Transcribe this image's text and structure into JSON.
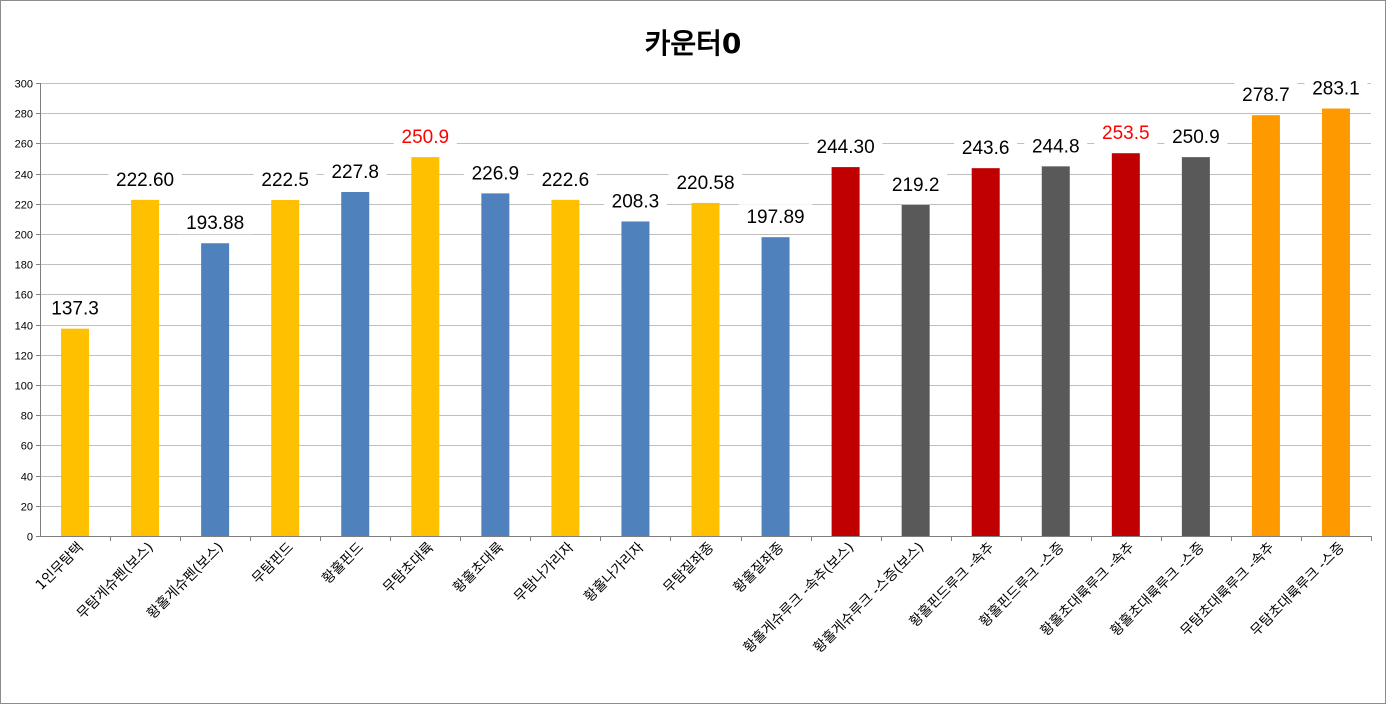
{
  "chart_data": {
    "type": "bar",
    "title": "카운터0",
    "xlabel": "",
    "ylabel": "",
    "ylim": [
      0,
      300
    ],
    "y_ticks": [
      0,
      20,
      40,
      60,
      80,
      100,
      120,
      140,
      160,
      180,
      200,
      220,
      240,
      260,
      280,
      300
    ],
    "grid": true,
    "legend": "none",
    "categories": [
      "1인무탐택",
      "무탐게슈펜(보스)",
      "황홀게슈펜(보스)",
      "무탐핀드",
      "황홀핀드",
      "무탐초대륙",
      "황홀초대륙",
      "무탐나가리자",
      "황홀나가리자",
      "무탐질좌종",
      "황홀질좌종",
      "황홀게슈루크 -속추(보스)",
      "황홀게슈루크 -스증(보스)",
      "황홀핀드루크 -속추",
      "황홀핀드루크 -스증",
      "황홀초대륙루크 -속추",
      "황홀초대륙루크 -스증",
      "무탐초대륙루크 -속추",
      "무탐초대륙루크 -스증"
    ],
    "values": [
      137.3,
      222.6,
      193.88,
      222.5,
      227.8,
      250.9,
      226.9,
      222.6,
      208.3,
      220.58,
      197.89,
      244.3,
      219.2,
      243.6,
      244.8,
      253.5,
      250.9,
      278.7,
      283.1
    ],
    "data_labels": [
      "137.3",
      "222.60",
      "193.88",
      "222.5",
      "227.8",
      "250.9",
      "226.9",
      "222.6",
      "208.3",
      "220.58",
      "197.89",
      "244.30",
      "219.2",
      "243.6",
      "244.8",
      "253.5",
      "250.9",
      "278.7",
      "283.1"
    ],
    "bar_colors": [
      "#ffc000",
      "#ffc000",
      "#4f81bd",
      "#ffc000",
      "#4f81bd",
      "#ffc000",
      "#4f81bd",
      "#ffc000",
      "#4f81bd",
      "#ffc000",
      "#4f81bd",
      "#c00000",
      "#595959",
      "#c00000",
      "#595959",
      "#c00000",
      "#595959",
      "#ff9900",
      "#ff9900"
    ],
    "label_colors": [
      "#000000",
      "#000000",
      "#000000",
      "#000000",
      "#000000",
      "#ff0000",
      "#000000",
      "#000000",
      "#000000",
      "#000000",
      "#000000",
      "#000000",
      "#000000",
      "#000000",
      "#000000",
      "#ff0000",
      "#000000",
      "#000000",
      "#000000"
    ]
  }
}
